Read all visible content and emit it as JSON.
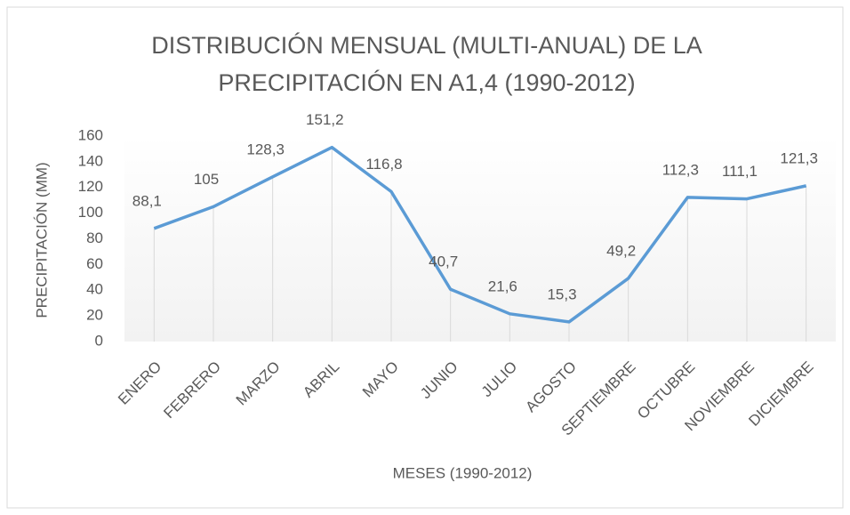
{
  "chart_data": {
    "type": "line",
    "title": "DISTRIBUCIÓN MENSUAL (MULTI-ANUAL) DE LA PRECIPITACIÓN EN A1,4 (1990-2012)",
    "x_label": "MESES (1990-2012)",
    "y_label": "PRECIPITACIÓN  (MM)",
    "categories": [
      "ENERO",
      "FEBRERO",
      "MARZO",
      "ABRIL",
      "MAYO",
      "JUNIO",
      "JULIO",
      "AGOSTO",
      "SEPTIEMBRE",
      "OCTUBRE",
      "NOVIEMBRE",
      "DICIEMBRE"
    ],
    "series": [
      {
        "name": "Precipitación",
        "color": "#5b9bd5",
        "values": [
          88.1,
          105,
          128.3,
          151.2,
          116.8,
          40.7,
          21.6,
          15.3,
          49.2,
          112.3,
          111.1,
          121.3
        ],
        "value_labels": [
          "88,1",
          "105",
          "128,3",
          "151,2",
          "116,8",
          "40,7",
          "21,6",
          "15,3",
          "49,2",
          "112,3",
          "111,1",
          "121,3"
        ]
      }
    ],
    "ylim": [
      0,
      160
    ],
    "yticks": [
      0,
      20,
      40,
      60,
      80,
      100,
      120,
      140,
      160
    ],
    "grid": false
  }
}
